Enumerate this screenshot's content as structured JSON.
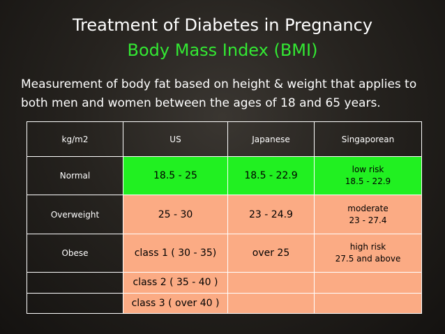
{
  "slide": {
    "title": "Treatment of Diabetes in Pregnancy",
    "subtitle": "Body Mass Index (BMI)",
    "description": "Measurement of body fat based on height & weight that applies to both men and women between the ages of 18 and 65 years."
  },
  "colors": {
    "normal_row": "#21f021",
    "other_rows": "#fbab84",
    "subtitle": "#33e833"
  },
  "table": {
    "headers": [
      "kg/m2",
      "US",
      "Japanese",
      "Singaporean"
    ],
    "rows": [
      {
        "label": "Normal",
        "us": "18.5 - 25",
        "japanese": "18.5 - 22.9",
        "sg_line1": "low risk",
        "sg_line2": "18.5 - 22.9"
      },
      {
        "label": "Overweight",
        "us": "25 - 30",
        "japanese": "23 - 24.9",
        "sg_line1": "moderate",
        "sg_line2": "23 - 27.4"
      },
      {
        "label": "Obese",
        "us": "class 1 ( 30 - 35)",
        "japanese": "over 25",
        "sg_line1": "high risk",
        "sg_line2": "27.5 and above"
      },
      {
        "label": "",
        "us": "class 2 ( 35 - 40 )",
        "japanese": "",
        "sg_line1": "",
        "sg_line2": ""
      },
      {
        "label": "",
        "us": "class 3 ( over 40 )",
        "japanese": "",
        "sg_line1": "",
        "sg_line2": ""
      }
    ]
  }
}
